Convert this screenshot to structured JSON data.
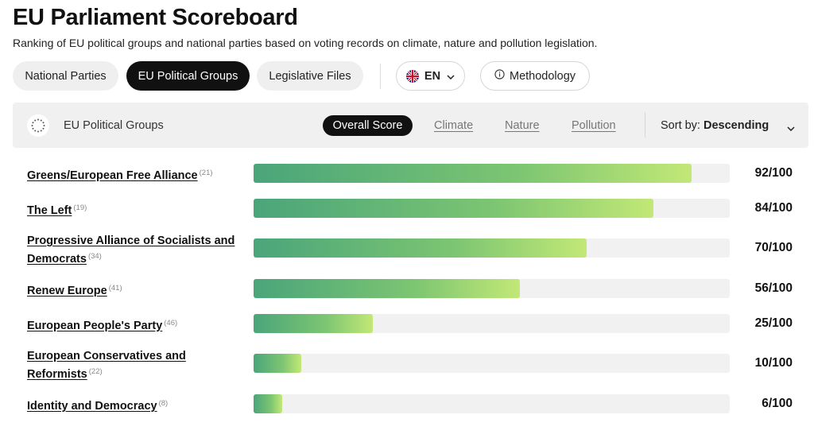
{
  "header": {
    "title": "EU Parliament Scoreboard",
    "subtitle": "Ranking of EU political groups and national parties based on voting records on climate, nature and pollution legislation."
  },
  "nav": {
    "national_parties": "National Parties",
    "eu_political_groups": "EU Political Groups",
    "legislative_files": "Legislative Files",
    "language": "EN",
    "methodology": "Methodology"
  },
  "filter": {
    "label": "EU Political Groups",
    "tabs": [
      "Overall Score",
      "Climate",
      "Nature",
      "Pollution"
    ],
    "sort_label": "Sort by:",
    "sort_value": "Descending"
  },
  "colors": {
    "bar_start": "#4aa57a",
    "bar_end": "#c2e876",
    "active_pill": "#111111"
  },
  "rows": [
    {
      "name": "Greens/European Free Alliance",
      "count": "(21)",
      "score": 92,
      "score_text": "92/100"
    },
    {
      "name": "The Left",
      "count": "(19)",
      "score": 84,
      "score_text": "84/100"
    },
    {
      "name": "Progressive Alliance of Socialists and Democrats",
      "count": "(34)",
      "score": 70,
      "score_text": "70/100"
    },
    {
      "name": "Renew Europe",
      "count": "(41)",
      "score": 56,
      "score_text": "56/100"
    },
    {
      "name": "European People's Party",
      "count": "(46)",
      "score": 25,
      "score_text": "25/100"
    },
    {
      "name": "European Conservatives and Reformists",
      "count": "(22)",
      "score": 10,
      "score_text": "10/100"
    },
    {
      "name": "Identity and Democracy",
      "count": "(8)",
      "score": 6,
      "score_text": "6/100"
    }
  ]
}
